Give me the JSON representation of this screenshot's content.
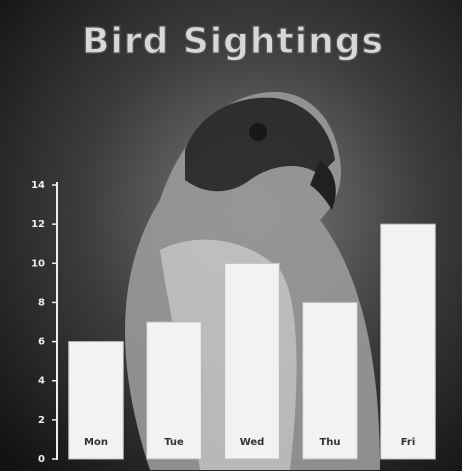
{
  "chart_data": {
    "type": "bar",
    "title": "Bird Sightings",
    "categories": [
      "Mon",
      "Tue",
      "Wed",
      "Thu",
      "Fri"
    ],
    "values": [
      6,
      7,
      10,
      8,
      12
    ],
    "color": "#f2f2f2",
    "ylim": [
      0,
      14
    ],
    "yticks": [
      0,
      2,
      4,
      6,
      8,
      10,
      12,
      14
    ]
  }
}
